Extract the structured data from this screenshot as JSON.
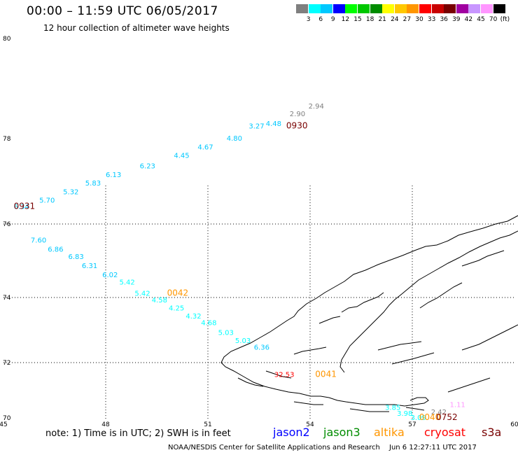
{
  "header": {
    "title": "00:00 – 11:59 UTC 06/05/2017",
    "subtitle": "12 hour collection of altimeter wave heights"
  },
  "scale": {
    "unit": "(ft)",
    "ticks": [
      "3",
      "6",
      "9",
      "12",
      "15",
      "18",
      "21",
      "24",
      "27",
      "30",
      "33",
      "36",
      "39",
      "42",
      "45",
      "70"
    ],
    "colors": [
      "#7f7f7f",
      "#00ffff",
      "#00c8ff",
      "#0000ff",
      "#00ff00",
      "#00c800",
      "#008c00",
      "#ffff00",
      "#ffc800",
      "#ff9600",
      "#ff0000",
      "#c80000",
      "#780000",
      "#a000a0",
      "#c896ff",
      "#ff96ff",
      "#000000"
    ]
  },
  "map": {
    "lon_ticks": [
      "45",
      "48",
      "51",
      "54",
      "57",
      "60"
    ],
    "lat_ticks": [
      "80",
      "78",
      "76",
      "74",
      "72",
      "70"
    ],
    "swh_points": [
      {
        "t": "6.34",
        "c": "#00c8ff",
        "lon": 45.3,
        "lat": 76.35
      },
      {
        "t": "5.70",
        "c": "#00c8ff",
        "lon": 46.05,
        "lat": 76.5
      },
      {
        "t": "5.32",
        "c": "#00c8ff",
        "lon": 46.75,
        "lat": 76.7
      },
      {
        "t": "5.83",
        "c": "#00c8ff",
        "lon": 47.4,
        "lat": 76.9
      },
      {
        "t": "6.13",
        "c": "#00c8ff",
        "lon": 48.0,
        "lat": 77.1
      },
      {
        "t": "6.23",
        "c": "#00c8ff",
        "lon": 49.0,
        "lat": 77.3
      },
      {
        "t": "4.45",
        "c": "#00c8ff",
        "lon": 50.0,
        "lat": 77.55
      },
      {
        "t": "4.67",
        "c": "#00c8ff",
        "lon": 50.7,
        "lat": 77.75
      },
      {
        "t": "4.80",
        "c": "#00c8ff",
        "lon": 51.55,
        "lat": 77.95
      },
      {
        "t": "3.27",
        "c": "#00c8ff",
        "lon": 52.2,
        "lat": 78.2
      },
      {
        "t": "4.48",
        "c": "#00c8ff",
        "lon": 52.7,
        "lat": 78.25
      },
      {
        "t": "2.90",
        "c": "#7f7f7f",
        "lon": 53.4,
        "lat": 78.45
      },
      {
        "t": "2.94",
        "c": "#7f7f7f",
        "lon": 53.95,
        "lat": 78.6
      },
      {
        "t": "7.60",
        "c": "#00c8ff",
        "lon": 45.8,
        "lat": 75.5
      },
      {
        "t": "6.86",
        "c": "#00c8ff",
        "lon": 46.3,
        "lat": 75.25
      },
      {
        "t": "6.83",
        "c": "#00c8ff",
        "lon": 46.9,
        "lat": 75.05
      },
      {
        "t": "6.31",
        "c": "#00c8ff",
        "lon": 47.3,
        "lat": 74.8
      },
      {
        "t": "6.02",
        "c": "#00c8ff",
        "lon": 47.9,
        "lat": 74.55
      },
      {
        "t": "5.42",
        "c": "#00ffff",
        "lon": 48.4,
        "lat": 74.35
      },
      {
        "t": "5.42",
        "c": "#00ffff",
        "lon": 48.85,
        "lat": 74.05
      },
      {
        "t": "4.58",
        "c": "#00ffff",
        "lon": 49.35,
        "lat": 73.85
      },
      {
        "t": "4.25",
        "c": "#00ffff",
        "lon": 49.85,
        "lat": 73.6
      },
      {
        "t": "4.32",
        "c": "#00ffff",
        "lon": 50.35,
        "lat": 73.35
      },
      {
        "t": "4.68",
        "c": "#00ffff",
        "lon": 50.8,
        "lat": 73.15
      },
      {
        "t": "5.03",
        "c": "#00ffff",
        "lon": 51.3,
        "lat": 72.85
      },
      {
        "t": "5.03",
        "c": "#00ffff",
        "lon": 51.8,
        "lat": 72.6
      },
      {
        "t": "6.36",
        "c": "#00c8ff",
        "lon": 52.35,
        "lat": 72.4
      },
      {
        "t": "32.53",
        "c": "#ff0000",
        "lon": 52.95,
        "lat": 71.5
      },
      {
        "t": "3.85",
        "c": "#00ffff",
        "lon": 56.2,
        "lat": 70.35
      },
      {
        "t": "3.98",
        "c": "#00ffff",
        "lon": 56.55,
        "lat": 70.15
      },
      {
        "t": "3.09",
        "c": "#00ffff",
        "lon": 56.95,
        "lat": 69.95
      },
      {
        "t": "2.42",
        "c": "#7f7f7f",
        "lon": 57.55,
        "lat": 70.2
      },
      {
        "t": "1.11",
        "c": "#ff96ff",
        "lon": 58.1,
        "lat": 70.45
      }
    ],
    "time_labels": [
      {
        "t": "0930",
        "c": "#780000",
        "lon": 53.3,
        "lat": 78.2
      },
      {
        "t": "0931",
        "c": "#780000",
        "lon": 45.3,
        "lat": 76.35
      },
      {
        "t": "0042",
        "c": "#ff9600",
        "lon": 49.8,
        "lat": 74.05
      },
      {
        "t": "0041",
        "c": "#ff9600",
        "lon": 54.15,
        "lat": 71.5
      },
      {
        "t": "0040",
        "c": "#ff9600",
        "lon": 57.2,
        "lat": 69.95
      },
      {
        "t": "0752",
        "c": "#780000",
        "lon": 57.7,
        "lat": 69.95
      }
    ]
  },
  "footer": {
    "note": "note: 1) Time is in UTC; 2) SWH is in feet",
    "credit": "NOAA/NESDIS Center for Satellite Applications and Research",
    "timestamp": "Jun  6 12:27:11 UTC 2017",
    "legend": [
      {
        "label": "jason2",
        "color": "#0000ff"
      },
      {
        "label": "jason3",
        "color": "#008c00"
      },
      {
        "label": "altika",
        "color": "#ff9600"
      },
      {
        "label": "cryosat",
        "color": "#ff0000"
      },
      {
        "label": "s3a",
        "color": "#780000"
      }
    ]
  }
}
